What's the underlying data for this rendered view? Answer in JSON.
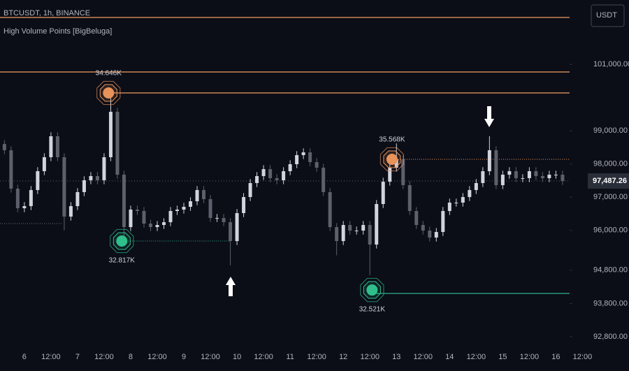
{
  "chart_data": {
    "type": "candlestick",
    "title": "BTCUSDT, 1h, BINANCE",
    "subtitle": "High Volume Points [BigBeluga]",
    "currency": "USDT",
    "up_color": "#d1d4dc",
    "down_color": "#5d606b",
    "xlim": [
      -11,
      273
    ],
    "ylim": [
      92315,
      102935
    ],
    "xticks": [
      {
        "value": 0,
        "label": "6"
      },
      {
        "value": 12,
        "label": "12:00"
      },
      {
        "value": 24,
        "label": "7"
      },
      {
        "value": 36,
        "label": "12:00"
      },
      {
        "value": 48,
        "label": "8"
      },
      {
        "value": 60,
        "label": "12:00"
      },
      {
        "value": 72,
        "label": "9"
      },
      {
        "value": 84,
        "label": "12:00"
      },
      {
        "value": 96,
        "label": "10"
      },
      {
        "value": 108,
        "label": "12:00"
      },
      {
        "value": 120,
        "label": "11"
      },
      {
        "value": 132,
        "label": "12:00"
      },
      {
        "value": 144,
        "label": "12"
      },
      {
        "value": 156,
        "label": "12:00"
      },
      {
        "value": 168,
        "label": "13"
      },
      {
        "value": 180,
        "label": "12:00"
      },
      {
        "value": 192,
        "label": "14"
      },
      {
        "value": 204,
        "label": "12:00"
      },
      {
        "value": 216,
        "label": "15"
      },
      {
        "value": 228,
        "label": "12:00"
      },
      {
        "value": 240,
        "label": "16"
      },
      {
        "value": 252,
        "label": "12:00"
      }
    ],
    "yticks": [
      {
        "value": 101000,
        "label": "101,000.00"
      },
      {
        "value": 99000,
        "label": "99,000.00"
      },
      {
        "value": 98000,
        "label": "98,000.00"
      },
      {
        "value": 97000,
        "label": "97,000.00"
      },
      {
        "value": 96000,
        "label": "96,000.00"
      },
      {
        "value": 94800,
        "label": "94,800.00"
      },
      {
        "value": 93800,
        "label": "93,800.00"
      },
      {
        "value": 92800,
        "label": "92,800.00"
      }
    ],
    "last_price": {
      "value": 97487.26,
      "label": "97,487.26"
    },
    "x": [
      -9,
      -6,
      -3,
      0,
      3,
      6,
      9,
      12,
      15,
      18,
      21,
      24,
      27,
      30,
      33,
      36,
      39,
      42,
      45,
      48,
      51,
      54,
      57,
      60,
      63,
      66,
      69,
      72,
      75,
      78,
      81,
      84,
      87,
      90,
      93,
      96,
      99,
      102,
      105,
      108,
      111,
      114,
      117,
      120,
      123,
      126,
      129,
      132,
      135,
      138,
      141,
      144,
      147,
      150,
      153,
      156,
      159,
      162,
      165,
      168,
      171,
      174,
      177,
      180,
      183,
      186,
      189,
      192,
      195,
      198,
      201,
      204,
      207,
      210,
      213,
      216,
      219,
      222,
      225,
      228,
      231,
      234,
      237,
      240,
      243
    ],
    "candles": [
      [
        98600,
        98720,
        98293,
        98413
      ],
      [
        98413,
        98533,
        97137,
        97257
      ],
      [
        97257,
        97377,
        96548,
        96668
      ],
      [
        96668,
        96851,
        96548,
        96731
      ],
      [
        96731,
        97335,
        96611,
        97215
      ],
      [
        97215,
        97902,
        97095,
        97782
      ],
      [
        97782,
        98323,
        97662,
        98203
      ],
      [
        98203,
        98954,
        98083,
        98834
      ],
      [
        98834,
        98954,
        98083,
        98203
      ],
      [
        98203,
        98323,
        96000,
        96415
      ],
      [
        96415,
        96851,
        96295,
        96731
      ],
      [
        96731,
        97272,
        96611,
        97152
      ],
      [
        97152,
        97629,
        97032,
        97509
      ],
      [
        97509,
        97755,
        97389,
        97635
      ],
      [
        97635,
        97755,
        97389,
        97509
      ],
      [
        97509,
        98323,
        97389,
        98203
      ],
      [
        98203,
        100050,
        98083,
        99570
      ],
      [
        99570,
        99690,
        97557,
        97677
      ],
      [
        97677,
        97797,
        95680,
        96100
      ],
      [
        96100,
        96746,
        95980,
        96626
      ],
      [
        96626,
        96746,
        96464,
        96584
      ],
      [
        96584,
        96704,
        96085,
        96205
      ],
      [
        96205,
        96325,
        95980,
        96100
      ],
      [
        96100,
        96283,
        95980,
        96163
      ],
      [
        96163,
        96367,
        96043,
        96247
      ],
      [
        96247,
        96704,
        96127,
        96584
      ],
      [
        96584,
        96746,
        96464,
        96626
      ],
      [
        96626,
        96830,
        96506,
        96710
      ],
      [
        96710,
        96998,
        96590,
        96878
      ],
      [
        96878,
        97335,
        96758,
        97215
      ],
      [
        97215,
        97335,
        96821,
        96941
      ],
      [
        96941,
        97061,
        96253,
        96373
      ],
      [
        96373,
        96493,
        96253,
        96373
      ],
      [
        96373,
        96493,
        96127,
        96247
      ],
      [
        96247,
        96367,
        94950,
        95679
      ],
      [
        95679,
        96641,
        95559,
        96521
      ],
      [
        96521,
        97124,
        96401,
        97004
      ],
      [
        97004,
        97545,
        96884,
        97425
      ],
      [
        97425,
        97755,
        97305,
        97635
      ],
      [
        97635,
        97965,
        97515,
        97845
      ],
      [
        97845,
        97965,
        97452,
        97572
      ],
      [
        97572,
        97692,
        97389,
        97509
      ],
      [
        97509,
        97902,
        97389,
        97782
      ],
      [
        97782,
        98113,
        97662,
        97993
      ],
      [
        97993,
        98386,
        97873,
        98266
      ],
      [
        98266,
        98470,
        98146,
        98350
      ],
      [
        98350,
        98470,
        97936,
        98056
      ],
      [
        98056,
        98176,
        97768,
        97888
      ],
      [
        97888,
        98008,
        97032,
        97152
      ],
      [
        97152,
        97272,
        95980,
        96100
      ],
      [
        96100,
        96220,
        95250,
        95679
      ],
      [
        95679,
        96283,
        95559,
        96163
      ],
      [
        96163,
        96283,
        95875,
        95995
      ],
      [
        95995,
        96115,
        95875,
        95995
      ],
      [
        95995,
        96283,
        95875,
        96163
      ],
      [
        96163,
        96283,
        94650,
        95574
      ],
      [
        95574,
        96914,
        95454,
        96794
      ],
      [
        96794,
        97587,
        96674,
        97467
      ],
      [
        97467,
        98008,
        97347,
        97888
      ],
      [
        97888,
        98620,
        97768,
        98140
      ],
      [
        98140,
        98260,
        97242,
        97362
      ],
      [
        97362,
        97482,
        96464,
        96584
      ],
      [
        96584,
        96704,
        96043,
        96163
      ],
      [
        96163,
        96283,
        95875,
        95995
      ],
      [
        95995,
        96115,
        95665,
        95785
      ],
      [
        95785,
        96073,
        95665,
        95953
      ],
      [
        95953,
        96704,
        95833,
        96584
      ],
      [
        96584,
        96956,
        96464,
        96836
      ],
      [
        96836,
        96956,
        96716,
        96836
      ],
      [
        96836,
        97124,
        96716,
        97004
      ],
      [
        97004,
        97335,
        96884,
        97215
      ],
      [
        97215,
        97545,
        97095,
        97425
      ],
      [
        97425,
        97902,
        97305,
        97782
      ],
      [
        97782,
        98834,
        97662,
        98413
      ],
      [
        98413,
        98533,
        97242,
        97362
      ],
      [
        97362,
        97797,
        97242,
        97677
      ],
      [
        97677,
        97902,
        97557,
        97782
      ],
      [
        97782,
        97902,
        97452,
        97572
      ],
      [
        97572,
        97692,
        97452,
        97572
      ],
      [
        97572,
        97902,
        97452,
        97782
      ],
      [
        97782,
        97902,
        97515,
        97635
      ],
      [
        97635,
        97755,
        97452,
        97572
      ],
      [
        97572,
        97797,
        97452,
        97677
      ],
      [
        97677,
        97797,
        97557,
        97677
      ],
      [
        97677,
        97797,
        97367,
        97487
      ]
    ],
    "levels": [
      {
        "price": 102409,
        "color": "#f0a060",
        "style": "solid"
      },
      {
        "price": 100769,
        "color": "#f0a060",
        "style": "solid"
      },
      {
        "price": 100138,
        "color": "#f0a060",
        "style": "solid",
        "from": 38
      },
      {
        "price": 94102,
        "color": "#2bb589",
        "style": "solid",
        "from": 157
      },
      {
        "price": 98140,
        "color": "#f0a060",
        "style": "dotted",
        "from": 166
      },
      {
        "price": 95680,
        "color": "#2bb589",
        "style": "dotted",
        "from": 44,
        "to": 93
      },
      {
        "price": 96205,
        "color": "#6a6d78",
        "style": "dotted",
        "to": 17
      }
    ],
    "markers": [
      {
        "x": 38,
        "y": 100138,
        "size": 34646,
        "label": "34.646K",
        "color": "#e8935a",
        "label_pos": "above"
      },
      {
        "x": 166,
        "y": 98140,
        "size": 35568,
        "label": "35.568K",
        "color": "#e8935a",
        "label_pos": "above"
      },
      {
        "x": 44,
        "y": 95680,
        "size": 32817,
        "label": "32.817K",
        "color": "#2fbf8c",
        "label_pos": "below"
      },
      {
        "x": 157,
        "y": 94207,
        "size": 32521,
        "label": "32.521K",
        "color": "#2fbf8c",
        "label_pos": "below"
      }
    ]
  }
}
